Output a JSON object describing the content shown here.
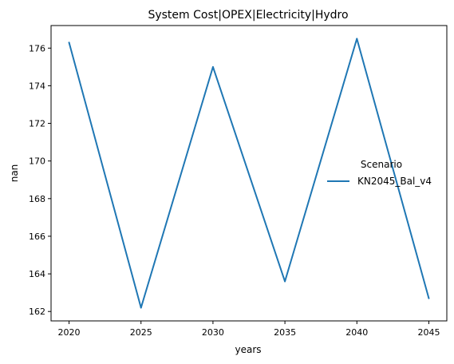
{
  "chart_data": {
    "type": "line",
    "title": "System Cost|OPEX|Electricity|Hydro",
    "xlabel": "years",
    "ylabel": "nan",
    "x": [
      2020,
      2025,
      2030,
      2035,
      2040,
      2045
    ],
    "x_ticks": [
      "2020",
      "2025",
      "2030",
      "2035",
      "2040",
      "2045"
    ],
    "y_ticks": [
      "162",
      "164",
      "166",
      "168",
      "170",
      "172",
      "174",
      "176"
    ],
    "xlim": [
      2018.75,
      2046.25
    ],
    "ylim": [
      161.5,
      177.2
    ],
    "grid": false,
    "legend": {
      "title": "Scenario",
      "placement": "center-right"
    },
    "series": [
      {
        "name": "KN2045_Bal_v4",
        "color": "#1f77b4",
        "values": [
          176.3,
          162.2,
          175.0,
          163.6,
          176.5,
          162.7
        ]
      }
    ]
  }
}
